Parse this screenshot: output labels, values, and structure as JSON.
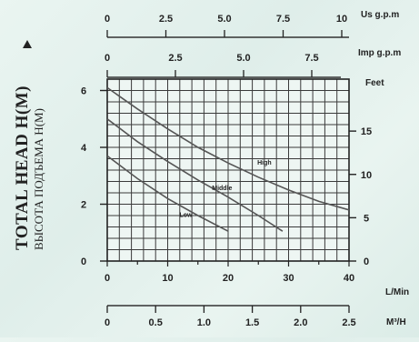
{
  "chart_data": {
    "type": "line",
    "ylabel": "TOTAL HEAD H(M)",
    "ylabel_sub": "ВЫСОТА ПОДЪЕМА H(M)",
    "xlim": [
      0,
      40
    ],
    "ylim": [
      0,
      6.4
    ],
    "y_ticks": [
      0,
      2,
      4,
      6
    ],
    "x_ticks": [
      0,
      10,
      20,
      30,
      40
    ],
    "x_unit": "L/Min",
    "right_axis": {
      "unit": "Feet",
      "ticks": [
        0,
        5,
        10,
        15
      ]
    },
    "top_axis_us": {
      "unit": "Us g.p.m",
      "ticks": [
        "0",
        "2.5",
        "5.0",
        "7.5",
        "10"
      ]
    },
    "top_axis_imp": {
      "unit": "Imp g.p.m",
      "ticks": [
        "0",
        "2.5",
        "5.0",
        "7.5"
      ]
    },
    "bottom_axis_m3h": {
      "unit": "M³/H",
      "ticks": [
        "0",
        "0.5",
        "1.0",
        "1.5",
        "2.0",
        "2.5"
      ]
    },
    "grid": true,
    "series": [
      {
        "name": "High",
        "x": [
          0,
          5,
          10,
          15,
          20,
          25,
          30,
          35,
          40
        ],
        "values": [
          6.1,
          5.35,
          4.65,
          4.0,
          3.45,
          2.95,
          2.5,
          2.1,
          1.8
        ]
      },
      {
        "name": "Middle",
        "x": [
          0,
          5,
          10,
          15,
          20,
          25,
          29
        ],
        "values": [
          5.0,
          4.2,
          3.5,
          2.85,
          2.25,
          1.6,
          1.05
        ]
      },
      {
        "name": "Low",
        "x": [
          0,
          5,
          10,
          15,
          20
        ],
        "values": [
          3.7,
          2.9,
          2.2,
          1.6,
          1.05
        ]
      }
    ]
  }
}
